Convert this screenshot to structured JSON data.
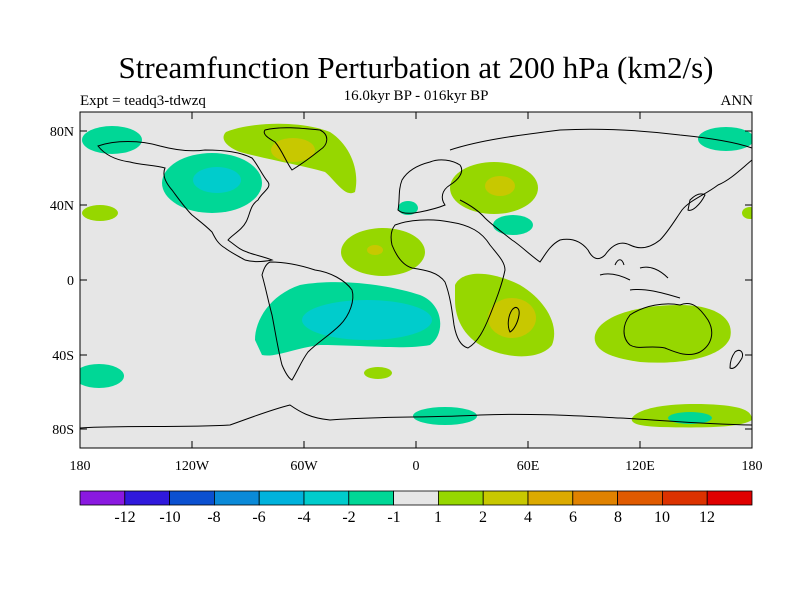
{
  "header": {
    "title": "Streamfunction Perturbation at 200 hPa (km2/s)",
    "subtitle": "16.0kyr BP - 016kyr BP",
    "left_label": "Expt = teadq3-tdwzq",
    "right_label": "ANN"
  },
  "map": {
    "background": "#e6e6e6",
    "coastline_color": "#000000",
    "x_ticks": [
      "180",
      "120W",
      "60W",
      "0",
      "60E",
      "120E",
      "180"
    ],
    "y_ticks": [
      "80N",
      "40N",
      "0",
      "40S",
      "80S"
    ]
  },
  "colorbar": {
    "colors": [
      "#8a19e0",
      "#3019dc",
      "#0b50d0",
      "#0a8ad8",
      "#00b2dc",
      "#00cccc",
      "#00d796",
      "#e6e6e6",
      "#96d700",
      "#c8c800",
      "#dcaa00",
      "#e08200",
      "#e05a00",
      "#dc3200",
      "#e00000"
    ],
    "labels": [
      "-12",
      "-10",
      "-8",
      "-6",
      "-4",
      "-2",
      "-1",
      "1",
      "2",
      "4",
      "6",
      "8",
      "10",
      "12"
    ]
  }
}
